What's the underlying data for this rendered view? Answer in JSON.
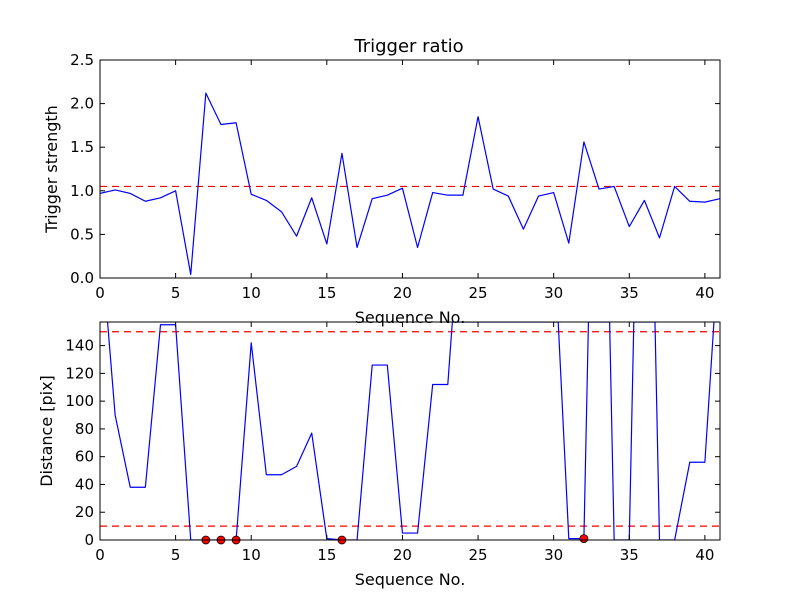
{
  "figure_title": "Trigger ratio",
  "chart_data": [
    {
      "type": "line",
      "xlabel": "Sequence No.",
      "ylabel": "Trigger strength",
      "xlim": [
        0,
        41
      ],
      "ylim": [
        0,
        2.5
      ],
      "xticks": [
        0,
        5,
        10,
        15,
        20,
        25,
        30,
        35,
        40
      ],
      "yticks": [
        0.0,
        0.5,
        1.0,
        1.5,
        2.0,
        2.5
      ],
      "ytick_labels": [
        "0.0",
        "0.5",
        "1.0",
        "1.5",
        "2.0",
        "2.5"
      ],
      "series": [
        {
          "color": "#0000ff",
          "x": [
            0,
            1,
            2,
            3,
            4,
            5,
            6,
            7,
            8,
            9,
            10,
            11,
            12,
            13,
            14,
            15,
            16,
            17,
            18,
            19,
            20,
            21,
            22,
            23,
            24,
            25,
            26,
            27,
            28,
            29,
            30,
            31,
            32,
            33,
            34,
            35,
            36,
            37,
            38,
            39,
            40,
            41
          ],
          "values": [
            0.97,
            1.01,
            0.97,
            0.88,
            0.92,
            1.0,
            0.04,
            2.12,
            1.76,
            1.78,
            0.96,
            0.89,
            0.76,
            0.48,
            0.92,
            0.39,
            1.43,
            0.35,
            0.91,
            0.95,
            1.03,
            0.35,
            0.98,
            0.95,
            0.95,
            1.85,
            1.02,
            0.94,
            0.56,
            0.94,
            0.98,
            0.4,
            1.56,
            1.02,
            1.05,
            0.59,
            0.89,
            0.46,
            1.05,
            0.88,
            0.87,
            0.91
          ]
        }
      ],
      "hlines": [
        {
          "y": 1.05,
          "color": "#ff0000",
          "style": "dashed"
        }
      ],
      "grid": false
    },
    {
      "type": "line",
      "xlabel": "Sequence No.",
      "ylabel": "Distance [pix]",
      "xlim": [
        0,
        41
      ],
      "ylim": [
        0,
        157
      ],
      "xticks": [
        0,
        5,
        10,
        15,
        20,
        25,
        30,
        35,
        40
      ],
      "yticks": [
        0,
        20,
        40,
        60,
        80,
        100,
        120,
        140
      ],
      "ytick_labels": [
        "0",
        "20",
        "40",
        "60",
        "80",
        "100",
        "120",
        "140"
      ],
      "series": [
        {
          "color": "#0000ff",
          "x": [
            0.5,
            1,
            2,
            3,
            4,
            5,
            6,
            7,
            8,
            9,
            10,
            11,
            12,
            13,
            14,
            15,
            16,
            17,
            18,
            19,
            20,
            21,
            22,
            23,
            23.3,
            30.3,
            31,
            32,
            32.3,
            33.7,
            34,
            35,
            35.3,
            36.7,
            37,
            38,
            39,
            40,
            40.6
          ],
          "values": [
            157,
            90,
            38,
            38,
            155,
            155,
            0,
            0,
            0,
            0,
            142,
            47,
            47,
            53,
            77,
            1,
            0,
            0,
            126,
            126,
            5,
            5,
            112,
            112,
            157,
            157,
            1,
            1,
            157,
            157,
            0,
            0,
            157,
            157,
            0,
            0,
            56,
            56,
            157
          ]
        }
      ],
      "markers": [
        {
          "x": 7,
          "y": 0
        },
        {
          "x": 8,
          "y": 0
        },
        {
          "x": 9,
          "y": 0
        },
        {
          "x": 16,
          "y": 0
        },
        {
          "x": 32,
          "y": 1
        }
      ],
      "marker_color": "#ff0000",
      "hlines": [
        {
          "y": 150,
          "color": "#ff0000",
          "style": "dashed"
        },
        {
          "y": 10,
          "color": "#ff0000",
          "style": "dashed"
        }
      ],
      "grid": false
    }
  ]
}
